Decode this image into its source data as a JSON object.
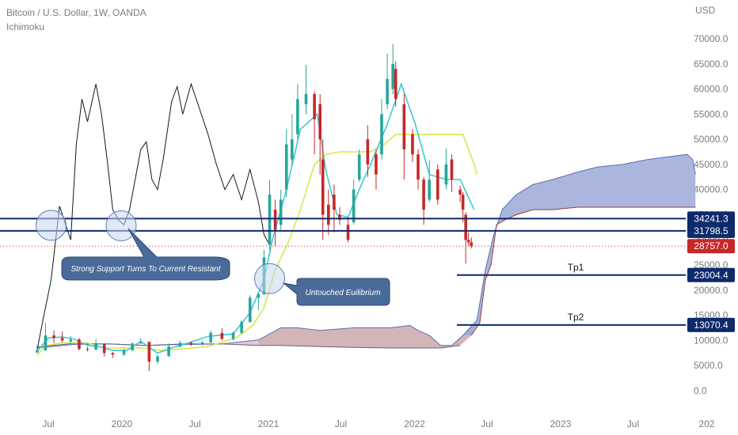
{
  "header": {
    "title": "Bitcoin / U.S. Dollar, 1W, OANDA",
    "indicator": "Ichimoku"
  },
  "chart_data": {
    "type": "candlestick",
    "currency": "USD",
    "y_ticks": [
      "70000.0",
      "65000.0",
      "60000.0",
      "55000.0",
      "50000.0",
      "45000.0",
      "40000.0",
      "35000.0",
      "30000.0",
      "25000.0",
      "20000.0",
      "15000.0",
      "10000.0",
      "5000.0",
      "0.0"
    ],
    "x_ticks": [
      {
        "label": "Jul",
        "date": "2019-07"
      },
      {
        "label": "2020",
        "date": "2020-01"
      },
      {
        "label": "Jul",
        "date": "2020-07"
      },
      {
        "label": "2021",
        "date": "2021-01"
      },
      {
        "label": "Jul",
        "date": "2021-07"
      },
      {
        "label": "2022",
        "date": "2022-01"
      },
      {
        "label": "Jul",
        "date": "2022-07"
      },
      {
        "label": "2023",
        "date": "2023-01"
      },
      {
        "label": "Jul",
        "date": "2023-07"
      },
      {
        "label": "202",
        "date": "2024-01"
      }
    ],
    "price_levels": [
      {
        "value": 34241.3,
        "label": "34241.3",
        "color": "#0d2a6b",
        "style": "solid"
      },
      {
        "value": 31798.5,
        "label": "31798.5",
        "color": "#0d2a6b",
        "style": "solid"
      },
      {
        "value": 28757.0,
        "label": "28757.0",
        "color": "#c62828",
        "style": "dotted"
      }
    ],
    "targets": [
      {
        "name": "Tp1",
        "value": 23004.4,
        "label": "23004.4"
      },
      {
        "name": "Tp2",
        "value": 13070.4,
        "label": "13070.4"
      }
    ],
    "annotations": [
      {
        "text": "Strong Support Turns To Current Resistant"
      },
      {
        "text": "Untouched Euilibrium"
      }
    ],
    "price_series": [
      [
        "2019-06-03",
        8000,
        7600,
        9000,
        7500
      ],
      [
        "2019-06-24",
        11000,
        8000,
        13500,
        8000
      ],
      [
        "2019-07-15",
        10500,
        11000,
        12000,
        9500
      ],
      [
        "2019-08-05",
        10000,
        10500,
        11800,
        9600
      ],
      [
        "2019-08-26",
        10200,
        9800,
        10900,
        9500
      ],
      [
        "2019-09-16",
        8300,
        10200,
        10500,
        8000
      ],
      [
        "2019-10-07",
        8200,
        8300,
        8700,
        7800
      ],
      [
        "2019-10-28",
        9300,
        8200,
        10300,
        8000
      ],
      [
        "2019-11-18",
        7500,
        9200,
        9400,
        6800
      ],
      [
        "2019-12-09",
        7200,
        7500,
        7700,
        6500
      ],
      [
        "2020-01-06",
        8000,
        7200,
        8400,
        6900
      ],
      [
        "2020-01-27",
        9400,
        8000,
        9600,
        7900
      ],
      [
        "2020-02-17",
        9700,
        9400,
        10500,
        9300
      ],
      [
        "2020-03-09",
        5800,
        9700,
        9800,
        3900
      ],
      [
        "2020-03-30",
        6800,
        5800,
        7200,
        5300
      ],
      [
        "2020-04-27",
        8800,
        6900,
        9400,
        6700
      ],
      [
        "2020-05-25",
        9500,
        8800,
        10000,
        8600
      ],
      [
        "2020-06-22",
        9200,
        9500,
        9800,
        8900
      ],
      [
        "2020-07-20",
        9600,
        9300,
        10000,
        9000
      ],
      [
        "2020-08-10",
        11500,
        9600,
        12000,
        9500
      ],
      [
        "2020-09-07",
        10300,
        11500,
        12400,
        10000
      ],
      [
        "2020-10-05",
        11500,
        10300,
        11800,
        10000
      ],
      [
        "2020-10-26",
        13700,
        11500,
        14000,
        11300
      ],
      [
        "2020-11-16",
        18500,
        13700,
        19000,
        13500
      ],
      [
        "2020-12-07",
        19200,
        18500,
        19500,
        16000
      ],
      [
        "2020-12-21",
        26500,
        19200,
        28000,
        19000
      ],
      [
        "2021-01-04",
        39000,
        29000,
        41900,
        28000
      ],
      [
        "2021-01-18",
        32000,
        36000,
        38000,
        28800
      ],
      [
        "2021-02-01",
        38000,
        33000,
        40000,
        32000
      ],
      [
        "2021-02-15",
        49000,
        40000,
        52000,
        38500
      ],
      [
        "2021-03-01",
        50000,
        46000,
        55000,
        45000
      ],
      [
        "2021-03-15",
        58000,
        51000,
        61000,
        50000
      ],
      [
        "2021-04-05",
        59000,
        57000,
        64800,
        55000
      ],
      [
        "2021-04-26",
        54000,
        59000,
        59500,
        47000
      ],
      [
        "2021-05-10",
        50000,
        57000,
        59000,
        43000
      ],
      [
        "2021-05-17",
        35000,
        46000,
        50000,
        30000
      ],
      [
        "2021-05-31",
        33000,
        37000,
        40000,
        31000
      ],
      [
        "2021-06-14",
        36000,
        39000,
        41000,
        31500
      ],
      [
        "2021-06-28",
        34000,
        35000,
        36500,
        33000
      ],
      [
        "2021-07-19",
        30000,
        33000,
        34500,
        29500
      ],
      [
        "2021-08-02",
        40000,
        33500,
        42000,
        33000
      ],
      [
        "2021-08-16",
        47000,
        42000,
        48000,
        41500
      ],
      [
        "2021-09-06",
        45000,
        50000,
        52800,
        42500
      ],
      [
        "2021-09-27",
        43000,
        47000,
        48000,
        40000
      ],
      [
        "2021-10-11",
        55000,
        47000,
        58000,
        46000
      ],
      [
        "2021-10-25",
        62000,
        57000,
        67000,
        56000
      ],
      [
        "2021-11-08",
        65000,
        60000,
        69000,
        59000
      ],
      [
        "2021-11-15",
        58000,
        64000,
        65500,
        56500
      ],
      [
        "2021-12-06",
        48000,
        57000,
        59000,
        42000
      ],
      [
        "2021-12-27",
        47000,
        51000,
        52000,
        45500
      ],
      [
        "2022-01-10",
        42000,
        47000,
        48000,
        40000
      ],
      [
        "2022-01-24",
        36000,
        42000,
        42500,
        33000
      ],
      [
        "2022-02-07",
        42000,
        38000,
        45800,
        37500
      ],
      [
        "2022-02-28",
        38000,
        44000,
        45000,
        37000
      ],
      [
        "2022-03-21",
        45000,
        41000,
        48200,
        40000
      ],
      [
        "2022-04-04",
        42000,
        46000,
        47000,
        39500
      ],
      [
        "2022-04-25",
        39000,
        40000,
        40800,
        37500
      ],
      [
        "2022-05-02",
        36000,
        39000,
        39500,
        33500
      ],
      [
        "2022-05-09",
        30000,
        35000,
        35500,
        25300
      ],
      [
        "2022-05-16",
        29500,
        30000,
        31500,
        28800
      ],
      [
        "2022-05-23",
        28757,
        29500,
        30500,
        28300
      ]
    ],
    "tenkan_line": [
      [
        "2019-06-03",
        7800
      ],
      [
        "2019-07-01",
        10500
      ],
      [
        "2019-08-05",
        10700
      ],
      [
        "2019-09-02",
        10300
      ],
      [
        "2019-10-07",
        9000
      ],
      [
        "2019-11-04",
        8800
      ],
      [
        "2019-12-09",
        8000
      ],
      [
        "2020-01-13",
        8000
      ],
      [
        "2020-02-17",
        9800
      ],
      [
        "2020-03-30",
        7500
      ],
      [
        "2020-05-04",
        8500
      ],
      [
        "2020-06-15",
        9500
      ],
      [
        "2020-08-03",
        10800
      ],
      [
        "2020-10-05",
        11300
      ],
      [
        "2020-11-16",
        15500
      ],
      [
        "2020-12-21",
        22000
      ],
      [
        "2021-01-11",
        30000
      ],
      [
        "2021-02-15",
        40000
      ],
      [
        "2021-03-22",
        52000
      ],
      [
        "2021-05-03",
        55000
      ],
      [
        "2021-05-24",
        44000
      ],
      [
        "2021-06-21",
        35000
      ],
      [
        "2021-07-19",
        34500
      ],
      [
        "2021-08-16",
        40000
      ],
      [
        "2021-09-13",
        45000
      ],
      [
        "2021-10-25",
        53000
      ],
      [
        "2021-11-29",
        61000
      ],
      [
        "2022-01-03",
        53000
      ],
      [
        "2022-02-07",
        43000
      ],
      [
        "2022-03-21",
        42000
      ],
      [
        "2022-04-25",
        42000
      ],
      [
        "2022-05-30",
        36000
      ]
    ],
    "kijun_line": [
      [
        "2019-06-03",
        7000
      ],
      [
        "2019-06-24",
        9000
      ],
      [
        "2019-08-05",
        9500
      ],
      [
        "2019-10-07",
        9500
      ],
      [
        "2019-11-18",
        8500
      ],
      [
        "2020-01-13",
        8500
      ],
      [
        "2020-02-24",
        8500
      ],
      [
        "2020-04-06",
        8000
      ],
      [
        "2020-06-01",
        8300
      ],
      [
        "2020-08-03",
        8800
      ],
      [
        "2020-10-12",
        10500
      ],
      [
        "2020-11-23",
        13000
      ],
      [
        "2020-12-21",
        16500
      ],
      [
        "2021-01-18",
        24000
      ],
      [
        "2021-02-22",
        30000
      ],
      [
        "2021-03-22",
        36000
      ],
      [
        "2021-04-26",
        45000
      ],
      [
        "2021-05-24",
        47000
      ],
      [
        "2021-06-28",
        47500
      ],
      [
        "2021-07-26",
        47500
      ],
      [
        "2021-09-13",
        47500
      ],
      [
        "2021-10-18",
        49000
      ],
      [
        "2021-11-15",
        51000
      ],
      [
        "2022-04-04",
        51000
      ],
      [
        "2022-05-02",
        51000
      ],
      [
        "2022-05-30",
        45000
      ],
      [
        "2022-06-06",
        43000
      ]
    ],
    "chikou_line": [
      [
        "2019-06-03",
        8000
      ],
      [
        "2019-06-17",
        13800
      ],
      [
        "2019-07-08",
        22000
      ],
      [
        "2019-07-29",
        36700
      ],
      [
        "2019-08-26",
        30000
      ],
      [
        "2019-09-09",
        49000
      ],
      [
        "2019-09-23",
        58000
      ],
      [
        "2019-10-07",
        53500
      ],
      [
        "2019-10-28",
        61000
      ],
      [
        "2019-11-11",
        55000
      ],
      [
        "2019-11-25",
        46000
      ],
      [
        "2019-12-09",
        36000
      ],
      [
        "2019-12-23",
        34000
      ],
      [
        "2020-01-06",
        33000
      ],
      [
        "2020-01-20",
        36000
      ],
      [
        "2020-02-03",
        42000
      ],
      [
        "2020-02-17",
        48000
      ],
      [
        "2020-03-02",
        49500
      ],
      [
        "2020-03-16",
        42000
      ],
      [
        "2020-03-30",
        40000
      ],
      [
        "2020-04-13",
        46000
      ],
      [
        "2020-05-04",
        57500
      ],
      [
        "2020-05-18",
        60500
      ],
      [
        "2020-06-01",
        55000
      ],
      [
        "2020-06-22",
        61000
      ],
      [
        "2020-07-13",
        56000
      ],
      [
        "2020-08-03",
        51000
      ],
      [
        "2020-08-24",
        45000
      ],
      [
        "2020-09-14",
        40000
      ],
      [
        "2020-10-05",
        43000
      ],
      [
        "2020-10-26",
        38000
      ],
      [
        "2020-11-16",
        44000
      ],
      [
        "2020-12-07",
        37500
      ],
      [
        "2020-12-21",
        31000
      ],
      [
        "2021-01-04",
        29000
      ]
    ],
    "kumo_cloud": {
      "span_a": [
        [
          "2019-06-03",
          8500
        ],
        [
          "2019-09-02",
          9200
        ],
        [
          "2019-12-02",
          9300
        ],
        [
          "2020-03-02",
          9000
        ],
        [
          "2020-06-01",
          9200
        ],
        [
          "2020-09-07",
          9300
        ],
        [
          "2020-12-07",
          10100
        ],
        [
          "2021-02-01",
          12500
        ],
        [
          "2021-03-15",
          12500
        ],
        [
          "2021-05-10",
          12000
        ],
        [
          "2021-08-02",
          12500
        ],
        [
          "2021-11-01",
          12500
        ],
        [
          "2021-12-20",
          13000
        ],
        [
          "2022-01-10",
          12000
        ],
        [
          "2022-02-07",
          11000
        ],
        [
          "2022-03-07",
          9000
        ],
        [
          "2022-04-04",
          9000
        ],
        [
          "2022-05-02",
          11000
        ],
        [
          "2022-06-06",
          14000
        ],
        [
          "2022-06-27",
          24000
        ],
        [
          "2022-07-18",
          31000
        ],
        [
          "2022-08-08",
          36000
        ],
        [
          "2022-09-12",
          39000
        ],
        [
          "2022-10-24",
          41000
        ],
        [
          "2022-12-12",
          42000
        ],
        [
          "2023-02-13",
          43500
        ],
        [
          "2023-04-03",
          44500
        ],
        [
          "2023-06-05",
          45000
        ],
        [
          "2023-08-07",
          46000
        ],
        [
          "2023-09-25",
          46500
        ],
        [
          "2023-11-13",
          47000
        ],
        [
          "2023-11-27",
          46000
        ],
        [
          "2023-12-04",
          43000
        ]
      ],
      "span_b": [
        [
          "2019-06-03",
          8700
        ],
        [
          "2019-09-02",
          9400
        ],
        [
          "2019-12-02",
          9300
        ],
        [
          "2020-03-02",
          9000
        ],
        [
          "2020-06-01",
          9300
        ],
        [
          "2020-09-07",
          9300
        ],
        [
          "2020-12-07",
          9000
        ],
        [
          "2021-02-01",
          9000
        ],
        [
          "2021-05-03",
          8800
        ],
        [
          "2021-08-02",
          8600
        ],
        [
          "2021-11-01",
          8500
        ],
        [
          "2022-01-03",
          8500
        ],
        [
          "2022-03-07",
          8500
        ],
        [
          "2022-04-25",
          9000
        ],
        [
          "2022-05-23",
          11000
        ],
        [
          "2022-06-13",
          13500
        ],
        [
          "2022-06-27",
          22000
        ],
        [
          "2022-07-11",
          25000
        ],
        [
          "2022-07-25",
          33000
        ],
        [
          "2022-08-15",
          34000
        ],
        [
          "2022-09-12",
          35000
        ],
        [
          "2022-10-24",
          36000
        ],
        [
          "2022-12-12",
          36000
        ],
        [
          "2023-02-13",
          36500
        ],
        [
          "2023-04-03",
          36500
        ],
        [
          "2023-06-05",
          36500
        ],
        [
          "2023-08-07",
          36500
        ],
        [
          "2023-10-02",
          36500
        ],
        [
          "2023-12-04",
          36500
        ]
      ],
      "bull_color": "#9ba9d7",
      "bear_color": "#c8a3a5"
    },
    "colors": {
      "up_candle": "#26a69a",
      "down_candle": "#c62828",
      "tenkan": "#d7e84a",
      "kijun": "#3fc8d6",
      "chikou": "#131722",
      "level_line": "#0d2a6b",
      "note_fill": "#4a6a9a"
    }
  }
}
